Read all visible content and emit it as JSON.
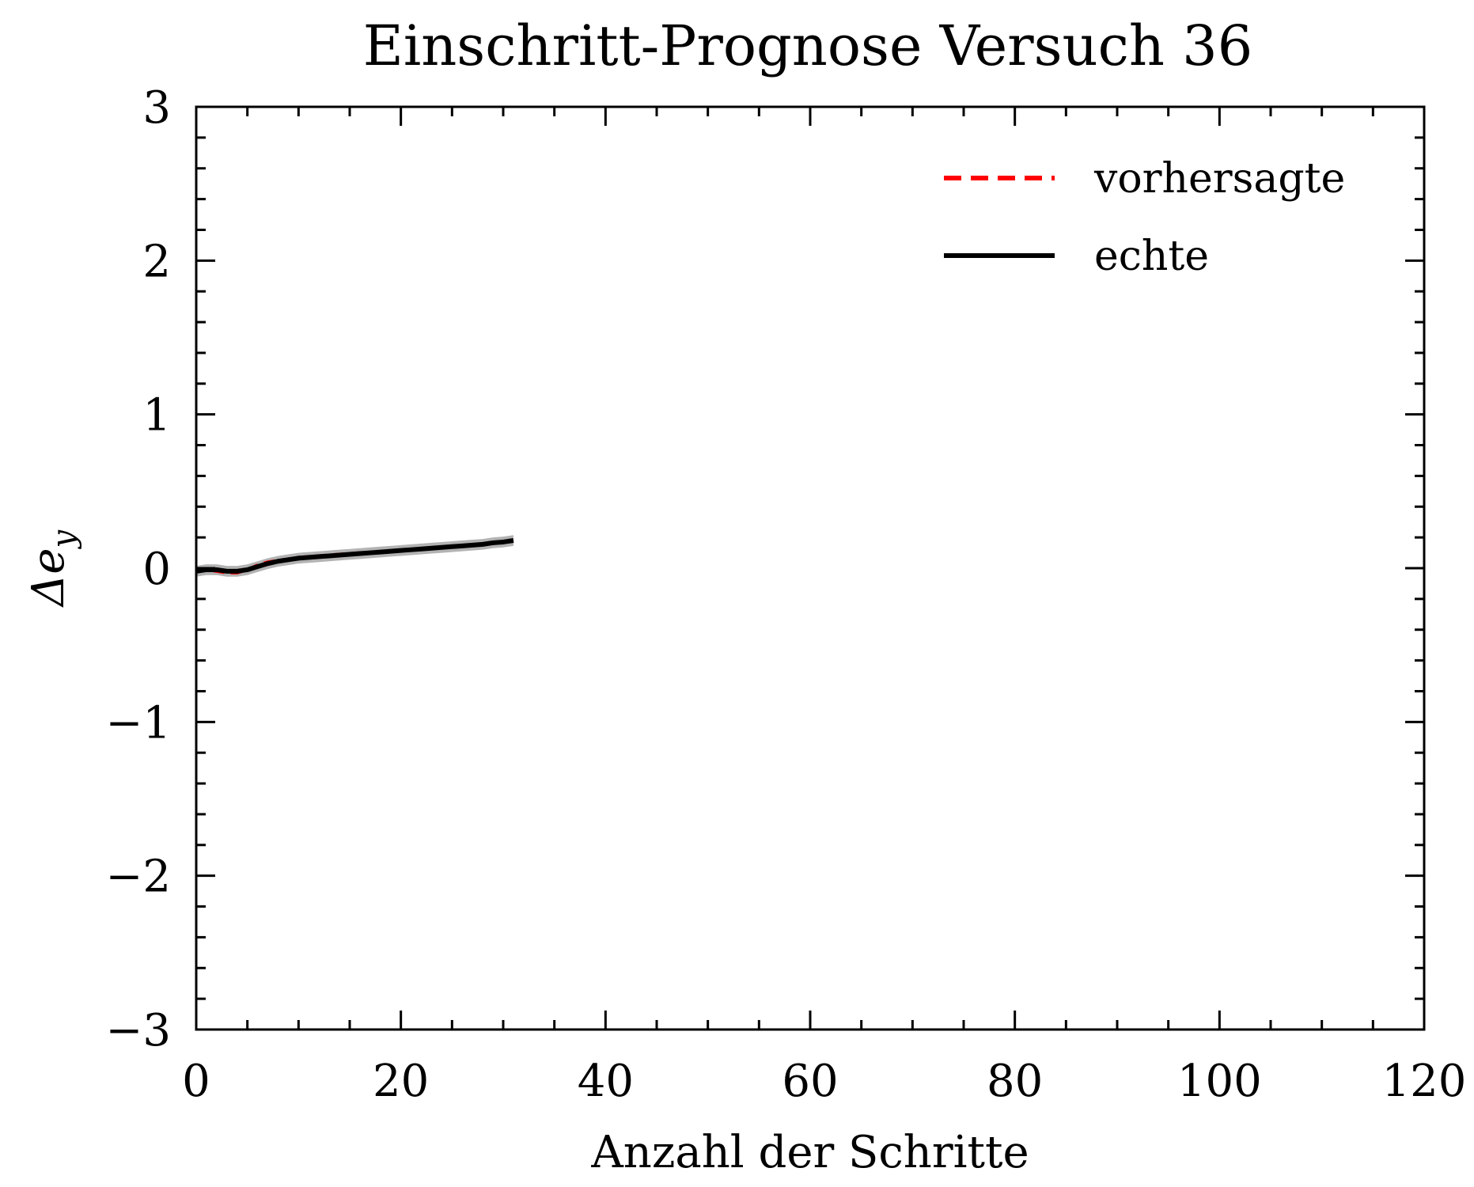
{
  "chart_data": {
    "type": "line",
    "title": "Einschritt-Prognose Versuch 36",
    "xlabel": "Anzahl der Schritte",
    "ylabel": "Δe_y",
    "ylabel_parts": {
      "main": "Δe",
      "sub": "y"
    },
    "xlim": [
      0,
      120
    ],
    "ylim": [
      -3,
      3
    ],
    "x_ticks": [
      "0",
      "20",
      "40",
      "60",
      "80",
      "100",
      "120"
    ],
    "y_ticks": [
      "−3",
      "−2",
      "−1",
      "0",
      "1",
      "2",
      "3"
    ],
    "grid": false,
    "legend_position": "top-right",
    "uncertainty_band": {
      "color": "#b3b3b3",
      "halfwidth": 0.035
    },
    "series": [
      {
        "name": "vorhersagte",
        "color": "#ff0000",
        "dash": "dashed",
        "x": [
          0,
          1,
          2,
          3,
          4,
          5,
          6,
          7,
          8,
          9,
          10,
          11,
          12,
          13,
          14,
          15,
          16,
          17,
          18,
          19,
          20,
          21,
          22,
          23,
          24,
          25,
          26,
          27,
          28,
          29,
          30,
          31
        ],
        "y": [
          -0.02,
          -0.01,
          -0.02,
          -0.03,
          -0.03,
          -0.01,
          0.02,
          0.04,
          0.05,
          0.06,
          0.07,
          0.075,
          0.08,
          0.085,
          0.09,
          0.095,
          0.1,
          0.103,
          0.107,
          0.11,
          0.115,
          0.12,
          0.125,
          0.13,
          0.135,
          0.14,
          0.145,
          0.15,
          0.155,
          0.16,
          0.17,
          0.18
        ]
      },
      {
        "name": "echte",
        "color": "#000000",
        "dash": "solid",
        "x": [
          0,
          1,
          2,
          3,
          4,
          5,
          6,
          7,
          8,
          9,
          10,
          11,
          12,
          13,
          14,
          15,
          16,
          17,
          18,
          19,
          20,
          21,
          22,
          23,
          24,
          25,
          26,
          27,
          28,
          29,
          30,
          31
        ],
        "y": [
          -0.02,
          -0.01,
          -0.01,
          -0.02,
          -0.02,
          -0.01,
          0.01,
          0.03,
          0.045,
          0.055,
          0.065,
          0.07,
          0.075,
          0.08,
          0.085,
          0.09,
          0.095,
          0.1,
          0.105,
          0.11,
          0.115,
          0.12,
          0.125,
          0.13,
          0.135,
          0.14,
          0.145,
          0.15,
          0.155,
          0.165,
          0.17,
          0.18
        ]
      }
    ]
  }
}
